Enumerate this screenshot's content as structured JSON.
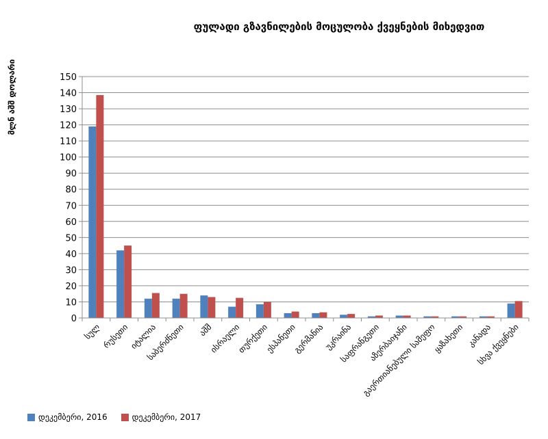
{
  "chart_data": {
    "type": "bar",
    "title": "ფულადი გზავნილების მოცულობა ქვეყნების მიხედვით",
    "ylabel": "მლნ აშშ დოლარი",
    "xlabel": "",
    "ylim": [
      0,
      150
    ],
    "yticks": [
      "0",
      "10",
      "20",
      "30",
      "40",
      "50",
      "60",
      "70",
      "80",
      "90",
      "100",
      "110",
      "120",
      "130",
      "140",
      "150"
    ],
    "grid": true,
    "legend_position": "bottom-left",
    "categories": [
      "სულ",
      "რუსეთი",
      "იტალია",
      "საბერძნეთი",
      "აშშ",
      "ისრაელი",
      "თურქეთი",
      "ესპანეთი",
      "გერმანია",
      "უკრაინა",
      "საფრანგეთი",
      "აზერბაიჯანი",
      "გაერთიანებული სამეფო",
      "ყაზახეთი",
      "კანადა",
      "სხვა ქვეყნები"
    ],
    "series": [
      {
        "name": "დეკემბერი, 2016",
        "color": "#4F81BD",
        "values": [
          119,
          42,
          12,
          12,
          14,
          7,
          8.5,
          3,
          3,
          2,
          1,
          1.5,
          1,
          1,
          1,
          9
        ]
      },
      {
        "name": "დეკემბერი, 2017",
        "color": "#C0504D",
        "values": [
          138.5,
          45,
          15.5,
          15,
          13,
          12.5,
          10,
          4,
          3.5,
          2.5,
          1.5,
          1.5,
          1,
          1,
          1,
          10.5
        ]
      }
    ]
  }
}
